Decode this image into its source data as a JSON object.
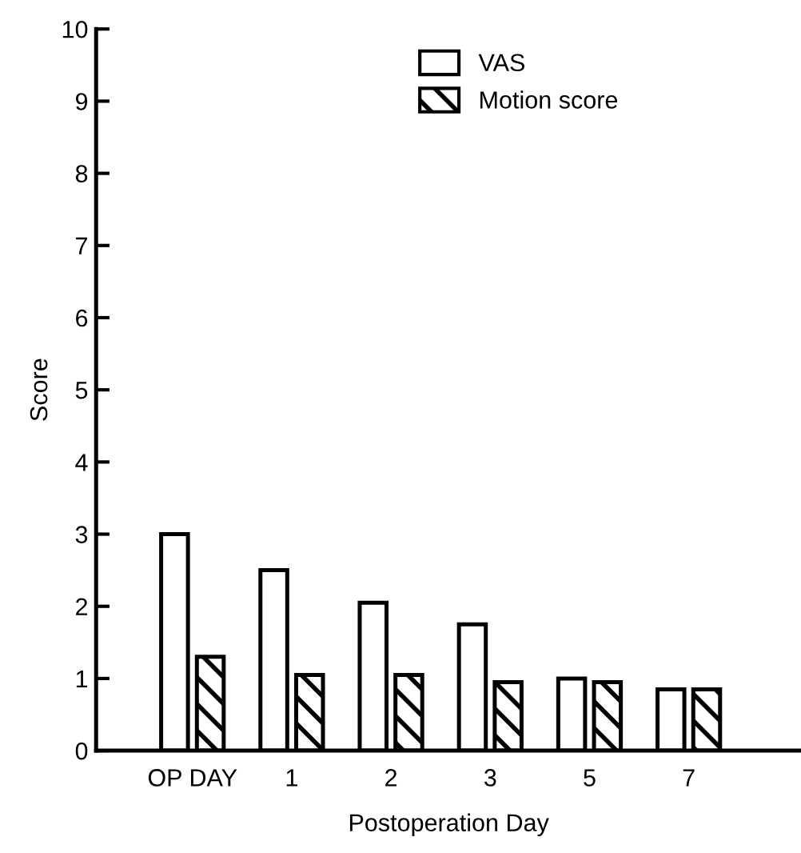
{
  "chart_data": {
    "type": "bar",
    "xlabel": "Postoperation Day",
    "ylabel": "Score",
    "categories": [
      "OP DAY",
      "1",
      "2",
      "3",
      "5",
      "7"
    ],
    "series": [
      {
        "name": "VAS",
        "color": "#ffffff",
        "values": [
          3.0,
          2.5,
          2.05,
          1.75,
          1.0,
          0.85
        ]
      },
      {
        "name": "Motion score",
        "color": "#000000",
        "values": [
          1.3,
          1.05,
          1.05,
          0.95,
          0.95,
          0.85
        ]
      }
    ],
    "ylim": [
      0,
      10
    ],
    "yticks": [
      0,
      1,
      2,
      3,
      4,
      5,
      6,
      7,
      8,
      9,
      10
    ],
    "grid": false,
    "legend": "top"
  }
}
